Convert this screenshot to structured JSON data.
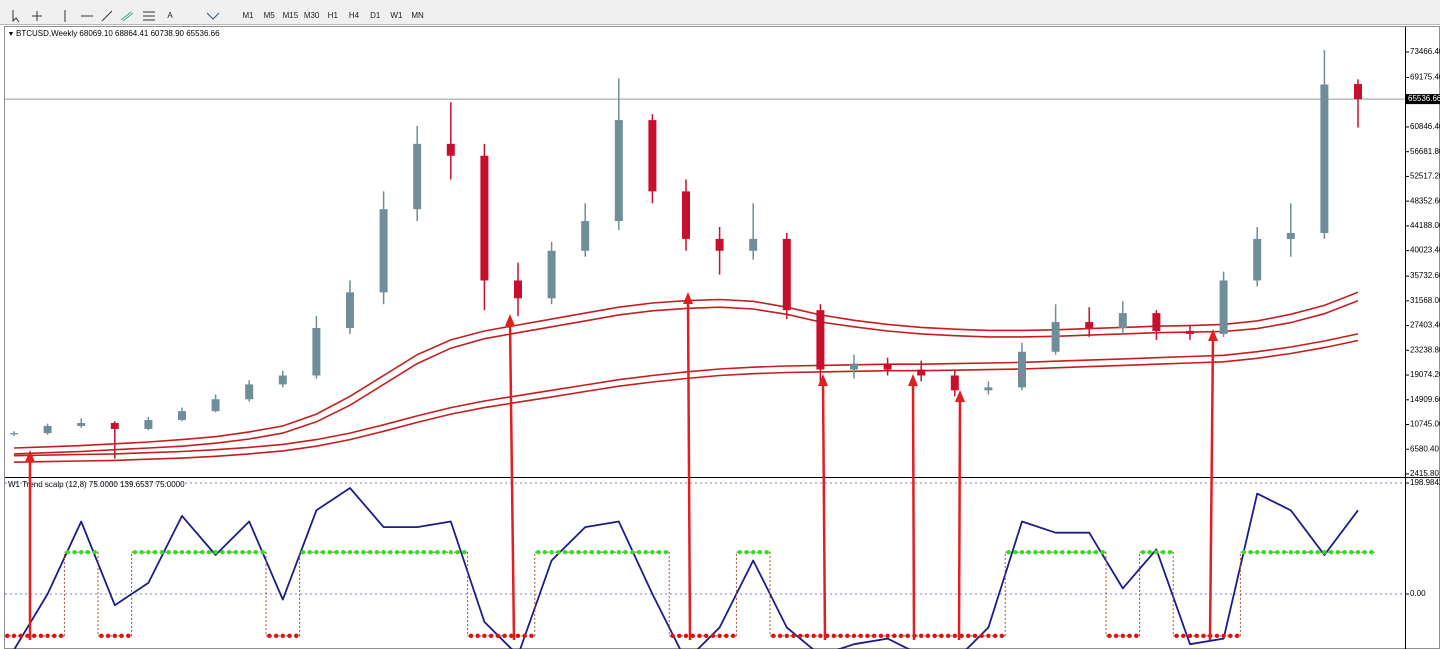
{
  "toolbar": {
    "text_tool": "A",
    "timeframes": [
      "M1",
      "M5",
      "M15",
      "M30",
      "H1",
      "H4",
      "D1",
      "W1",
      "MN"
    ]
  },
  "chart_data": [
    {
      "type": "candlestick",
      "title": "BTCUSD,Weekly  68069.10 68864.41 60738.90 65536.66",
      "open": [
        9100,
        9300,
        10500,
        11000,
        10000,
        11500,
        13000,
        15000,
        17500,
        19000,
        27000,
        33000,
        47000,
        58000,
        56000,
        35000,
        32000,
        40000,
        45000,
        62000,
        50000,
        42000,
        40000,
        42000,
        30000,
        20000,
        21000,
        20000,
        19000,
        16500,
        17000,
        23000,
        28000,
        27000,
        29500,
        26500,
        26000,
        35000,
        42000,
        43000,
        68069.1
      ],
      "high": [
        9600,
        10900,
        11800,
        11300,
        12000,
        13600,
        15800,
        18200,
        19800,
        29000,
        35000,
        50000,
        61000,
        65000,
        58000,
        38000,
        41500,
        48000,
        69000,
        63000,
        52000,
        44000,
        48000,
        43000,
        31000,
        22500,
        22000,
        21500,
        19800,
        18000,
        24500,
        31000,
        30500,
        31500,
        30000,
        27500,
        36500,
        44000,
        48000,
        73800,
        68864.41
      ],
      "low": [
        8800,
        9000,
        10200,
        5000,
        9800,
        11300,
        12800,
        14600,
        17000,
        18500,
        26000,
        31000,
        45000,
        52000,
        30000,
        29000,
        31000,
        39000,
        43500,
        48000,
        40000,
        36000,
        38500,
        28500,
        17500,
        18500,
        19000,
        18000,
        15500,
        15800,
        16500,
        22500,
        25500,
        26000,
        25000,
        25000,
        25500,
        34000,
        39000,
        42000,
        60738.9
      ],
      "close": [
        9300,
        10500,
        11000,
        10000,
        11500,
        13000,
        15000,
        17500,
        19000,
        27000,
        33000,
        47000,
        58000,
        56000,
        35000,
        32000,
        40000,
        45000,
        62000,
        50000,
        42000,
        40000,
        42000,
        30000,
        20000,
        21000,
        20000,
        19000,
        16500,
        17000,
        23000,
        28000,
        27000,
        29500,
        26500,
        26000,
        35000,
        42000,
        43000,
        68000,
        65536.66
      ],
      "up_color": "#6f8e99",
      "down_color": "#c8102e",
      "series": [
        {
          "color": "#c41e1e",
          "values": [
            6800,
            7000,
            7200,
            7500,
            7800,
            8200,
            8700,
            9500,
            10500,
            12500,
            15500,
            19000,
            22500,
            25000,
            26500,
            27500,
            28500,
            29500,
            30500,
            31200,
            31600,
            31800,
            31500,
            30500,
            29200,
            28300,
            27600,
            27100,
            26800,
            26600,
            26600,
            26700,
            26900,
            27100,
            27300,
            27400,
            27600,
            28200,
            29300,
            30800,
            33000
          ]
        },
        {
          "color": "#c41e1e",
          "values": [
            5800,
            6000,
            6200,
            6500,
            6800,
            7100,
            7600,
            8300,
            9300,
            11200,
            14000,
            17500,
            21000,
            23600,
            25200,
            26200,
            27200,
            28200,
            29200,
            29900,
            30300,
            30500,
            30200,
            29300,
            28000,
            27200,
            26500,
            26000,
            25700,
            25500,
            25500,
            25600,
            25800,
            26000,
            26200,
            26300,
            26400,
            26900,
            27900,
            29400,
            31600
          ]
        },
        {
          "color": "#c41e1e",
          "values": [
            5500,
            5600,
            5700,
            5800,
            6000,
            6200,
            6500,
            6900,
            7400,
            8200,
            9300,
            10700,
            12200,
            13600,
            14700,
            15600,
            16500,
            17400,
            18300,
            19000,
            19600,
            20100,
            20400,
            20600,
            20700,
            20800,
            20900,
            20900,
            21000,
            21100,
            21200,
            21400,
            21600,
            21800,
            22000,
            22200,
            22400,
            23000,
            23800,
            24800,
            26000
          ]
        },
        {
          "color": "#c41e1e",
          "values": [
            4400,
            4500,
            4600,
            4700,
            4900,
            5100,
            5400,
            5800,
            6300,
            7100,
            8200,
            9600,
            11100,
            12500,
            13600,
            14500,
            15400,
            16300,
            17200,
            17900,
            18500,
            19000,
            19300,
            19500,
            19600,
            19700,
            19800,
            19800,
            19900,
            20000,
            20100,
            20300,
            20500,
            20700,
            20900,
            21100,
            21300,
            21900,
            22700,
            23700,
            24900
          ]
        }
      ],
      "price_line": {
        "value": 65536.66,
        "label": "65536.66"
      },
      "ylim": [
        1742,
        77507
      ],
      "yticks": [
        {
          "value": 73466.4,
          "label": "73466.40"
        },
        {
          "value": 69175.4,
          "label": "69175.40"
        },
        {
          "value": 60846.4,
          "label": "60846.40"
        },
        {
          "value": 56681.8,
          "label": "56681.80"
        },
        {
          "value": 52517.2,
          "label": "52517.20"
        },
        {
          "value": 48352.6,
          "label": "48352.60"
        },
        {
          "value": 44188,
          "label": "44188.00"
        },
        {
          "value": 40023.4,
          "label": "40023.40"
        },
        {
          "value": 35732.6,
          "label": "35732.60"
        },
        {
          "value": 31568,
          "label": "31568.00"
        },
        {
          "value": 27403.4,
          "label": "27403.40"
        },
        {
          "value": 23238.8,
          "label": "23238.80"
        },
        {
          "value": 19074.2,
          "label": "19074.20"
        },
        {
          "value": 14909.6,
          "label": "14909.60"
        },
        {
          "value": 10745,
          "label": "10745.00"
        },
        {
          "value": 6580.4,
          "label": "6580.40"
        },
        {
          "value": 2415.8,
          "label": "2415.80"
        }
      ]
    },
    {
      "type": "line",
      "title": "W1 Trend scalp (12,8) 75.0000 139.6537 75.0000",
      "series": [
        {
          "color": "#1c1c8a",
          "values": [
            -100,
            0,
            130,
            -20,
            20,
            140,
            70,
            130,
            -10,
            150,
            190,
            120,
            120,
            130,
            -50,
            -110,
            60,
            120,
            130,
            0,
            -120,
            -60,
            60,
            -60,
            -110,
            -90,
            -80,
            -110,
            -120,
            -60,
            130,
            110,
            110,
            10,
            80,
            -90,
            -80,
            180,
            150,
            70,
            150
          ]
        },
        {
          "color": "#a0522d",
          "style": "dashed",
          "values": [
            -75,
            -75,
            75,
            -75,
            75,
            75,
            75,
            75,
            -75,
            75,
            75,
            75,
            75,
            75,
            -75,
            -75,
            75,
            75,
            75,
            75,
            -75,
            -75,
            75,
            -75,
            -75,
            -75,
            -75,
            -75,
            -75,
            -75,
            75,
            75,
            75,
            -75,
            75,
            -75,
            -75,
            75,
            75,
            75,
            75
          ]
        }
      ],
      "up_color": "#33dd22",
      "down_color": "#dd1111",
      "ylim": [
        -98.6,
        208
      ],
      "yticks": [
        198.9842,
        {
          "value": 0,
          "label": "0.00"
        }
      ]
    }
  ]
}
